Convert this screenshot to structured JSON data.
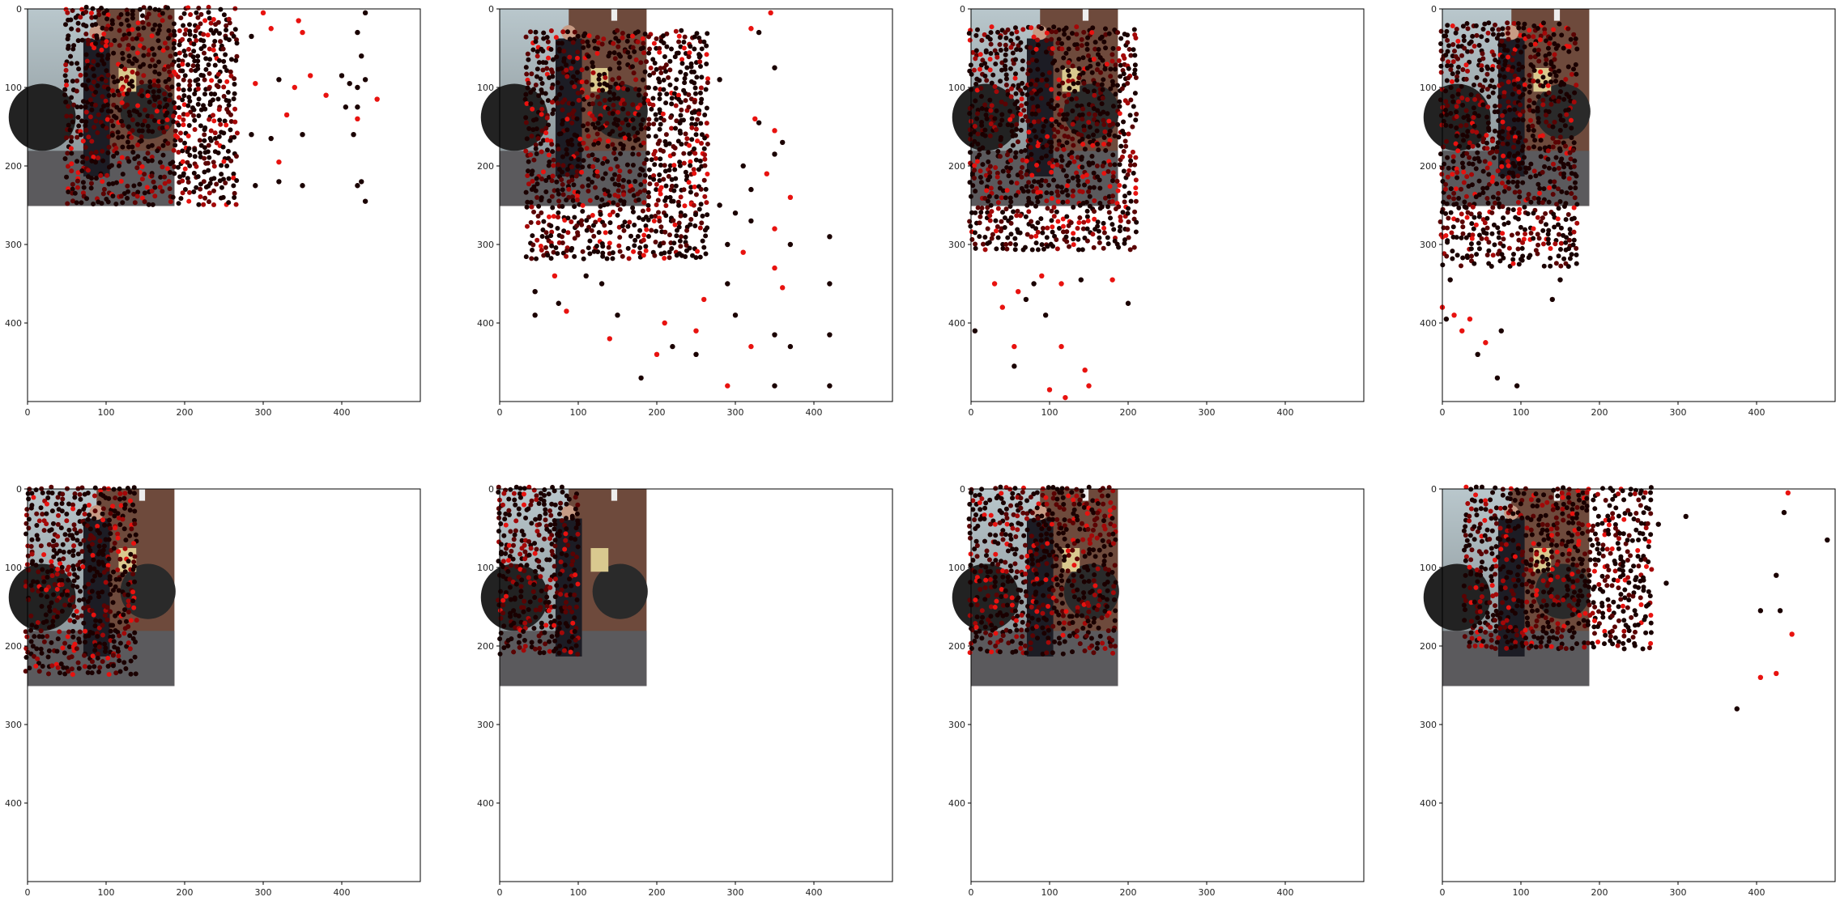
{
  "figure": {
    "layout": "2 rows x 4 columns of scatter plots over a photo background",
    "background_photo": "street scene: person in dark suit and hat standing in front of a silver pickup truck by a brick wall",
    "colors": {
      "dark_point": "#1a0000",
      "bright_point": "#e8120f",
      "axes": "#000000",
      "background": "#ffffff"
    }
  },
  "chart_data": [
    {
      "type": "scatter",
      "panel": 1,
      "xlim": [
        0,
        500
      ],
      "ylim": [
        500,
        0
      ],
      "xticks": [
        0,
        100,
        200,
        300,
        400
      ],
      "yticks": [
        0,
        100,
        200,
        300,
        400
      ],
      "photo_extent": {
        "x": [
          0,
          187
        ],
        "y": [
          0,
          251
        ]
      },
      "cloud": {
        "x": [
          50,
          265
        ],
        "y": [
          0,
          248
        ]
      },
      "outliers": [
        [
          285,
          35
        ],
        [
          300,
          5
        ],
        [
          310,
          25
        ],
        [
          345,
          15
        ],
        [
          350,
          30
        ],
        [
          290,
          95
        ],
        [
          320,
          90
        ],
        [
          340,
          100
        ],
        [
          360,
          85
        ],
        [
          330,
          135
        ],
        [
          350,
          160
        ],
        [
          285,
          160
        ],
        [
          310,
          165
        ],
        [
          290,
          225
        ],
        [
          320,
          220
        ],
        [
          350,
          225
        ],
        [
          320,
          195
        ],
        [
          380,
          110
        ],
        [
          400,
          85
        ],
        [
          410,
          95
        ],
        [
          420,
          100
        ],
        [
          405,
          125
        ],
        [
          420,
          125
        ],
        [
          420,
          140
        ],
        [
          415,
          160
        ],
        [
          420,
          225
        ],
        [
          425,
          220
        ],
        [
          430,
          245
        ],
        [
          445,
          115
        ],
        [
          430,
          90
        ],
        [
          425,
          60
        ],
        [
          420,
          30
        ],
        [
          430,
          5
        ]
      ]
    },
    {
      "type": "scatter",
      "panel": 2,
      "xlim": [
        0,
        500
      ],
      "ylim": [
        500,
        0
      ],
      "xticks": [
        0,
        100,
        200,
        300,
        400
      ],
      "yticks": [
        0,
        100,
        200,
        300,
        400
      ],
      "photo_extent": {
        "x": [
          0,
          187
        ],
        "y": [
          0,
          251
        ]
      },
      "cloud": {
        "x": [
          35,
          265
        ],
        "y": [
          30,
          320
        ]
      },
      "outliers": [
        [
          345,
          5
        ],
        [
          320,
          25
        ],
        [
          330,
          30
        ],
        [
          350,
          75
        ],
        [
          255,
          60
        ],
        [
          280,
          90
        ],
        [
          325,
          140
        ],
        [
          330,
          145
        ],
        [
          350,
          155
        ],
        [
          360,
          170
        ],
        [
          310,
          200
        ],
        [
          320,
          230
        ],
        [
          340,
          210
        ],
        [
          350,
          185
        ],
        [
          280,
          250
        ],
        [
          300,
          260
        ],
        [
          320,
          270
        ],
        [
          290,
          300
        ],
        [
          310,
          310
        ],
        [
          350,
          280
        ],
        [
          370,
          300
        ],
        [
          370,
          240
        ],
        [
          420,
          290
        ],
        [
          420,
          350
        ],
        [
          420,
          415
        ],
        [
          420,
          480
        ],
        [
          350,
          330
        ],
        [
          360,
          355
        ],
        [
          350,
          415
        ],
        [
          370,
          430
        ],
        [
          350,
          480
        ],
        [
          290,
          480
        ],
        [
          300,
          390
        ],
        [
          320,
          430
        ],
        [
          290,
          350
        ],
        [
          260,
          370
        ],
        [
          250,
          410
        ],
        [
          250,
          440
        ],
        [
          220,
          430
        ],
        [
          210,
          400
        ],
        [
          200,
          440
        ],
        [
          180,
          470
        ],
        [
          150,
          390
        ],
        [
          140,
          420
        ],
        [
          130,
          350
        ],
        [
          110,
          340
        ],
        [
          70,
          340
        ],
        [
          75,
          375
        ],
        [
          85,
          385
        ],
        [
          45,
          360
        ],
        [
          45,
          390
        ]
      ]
    },
    {
      "type": "scatter",
      "panel": 3,
      "xlim": [
        0,
        500
      ],
      "ylim": [
        500,
        0
      ],
      "xticks": [
        0,
        100,
        200,
        300,
        400
      ],
      "yticks": [
        0,
        100,
        200,
        300,
        400
      ],
      "photo_extent": {
        "x": [
          0,
          187
        ],
        "y": [
          0,
          251
        ]
      },
      "cloud": {
        "x": [
          0,
          210
        ],
        "y": [
          25,
          310
        ]
      },
      "outliers": [
        [
          5,
          410
        ],
        [
          30,
          350
        ],
        [
          40,
          380
        ],
        [
          55,
          430
        ],
        [
          55,
          455
        ],
        [
          60,
          360
        ],
        [
          70,
          370
        ],
        [
          80,
          350
        ],
        [
          90,
          340
        ],
        [
          95,
          390
        ],
        [
          100,
          485
        ],
        [
          115,
          350
        ],
        [
          115,
          430
        ],
        [
          120,
          495
        ],
        [
          140,
          345
        ],
        [
          145,
          460
        ],
        [
          150,
          480
        ],
        [
          180,
          345
        ],
        [
          200,
          375
        ]
      ]
    },
    {
      "type": "scatter",
      "panel": 4,
      "xlim": [
        0,
        500
      ],
      "ylim": [
        500,
        0
      ],
      "xticks": [
        0,
        100,
        200,
        300,
        400
      ],
      "yticks": [
        0,
        100,
        200,
        300,
        400
      ],
      "photo_extent": {
        "x": [
          0,
          187
        ],
        "y": [
          0,
          251
        ]
      },
      "cloud": {
        "x": [
          0,
          170
        ],
        "y": [
          20,
          330
        ]
      },
      "outliers": [
        [
          0,
          380
        ],
        [
          5,
          395
        ],
        [
          10,
          345
        ],
        [
          15,
          390
        ],
        [
          25,
          410
        ],
        [
          35,
          395
        ],
        [
          45,
          440
        ],
        [
          55,
          425
        ],
        [
          70,
          470
        ],
        [
          75,
          410
        ],
        [
          95,
          480
        ],
        [
          140,
          370
        ],
        [
          150,
          345
        ]
      ]
    },
    {
      "type": "scatter",
      "panel": 5,
      "xlim": [
        0,
        500
      ],
      "ylim": [
        500,
        0
      ],
      "xticks": [
        0,
        100,
        200,
        300,
        400
      ],
      "yticks": [
        0,
        100,
        200,
        300,
        400
      ],
      "photo_extent": {
        "x": [
          0,
          187
        ],
        "y": [
          0,
          251
        ]
      },
      "cloud": {
        "x": [
          0,
          140
        ],
        "y": [
          0,
          240
        ]
      },
      "outliers": []
    },
    {
      "type": "scatter",
      "panel": 6,
      "xlim": [
        0,
        500
      ],
      "ylim": [
        500,
        0
      ],
      "xticks": [
        0,
        100,
        200,
        300,
        400
      ],
      "yticks": [
        0,
        100,
        200,
        300,
        400
      ],
      "photo_extent": {
        "x": [
          0,
          187
        ],
        "y": [
          0,
          251
        ]
      },
      "cloud": {
        "x": [
          0,
          100
        ],
        "y": [
          0,
          210
        ]
      },
      "outliers": []
    },
    {
      "type": "scatter",
      "panel": 7,
      "xlim": [
        0,
        500
      ],
      "ylim": [
        500,
        0
      ],
      "xticks": [
        0,
        100,
        200,
        300,
        400
      ],
      "yticks": [
        0,
        100,
        200,
        300,
        400
      ],
      "photo_extent": {
        "x": [
          0,
          187
        ],
        "y": [
          0,
          251
        ]
      },
      "cloud": {
        "x": [
          0,
          185
        ],
        "y": [
          0,
          210
        ]
      },
      "outliers": []
    },
    {
      "type": "scatter",
      "panel": 8,
      "xlim": [
        0,
        500
      ],
      "ylim": [
        500,
        0
      ],
      "xticks": [
        0,
        100,
        200,
        300,
        400
      ],
      "yticks": [
        0,
        100,
        200,
        300,
        400
      ],
      "photo_extent": {
        "x": [
          0,
          187
        ],
        "y": [
          0,
          251
        ]
      },
      "cloud": {
        "x": [
          30,
          270
        ],
        "y": [
          0,
          205
        ]
      },
      "outliers": [
        [
          275,
          45
        ],
        [
          285,
          120
        ],
        [
          310,
          35
        ],
        [
          375,
          280
        ],
        [
          405,
          155
        ],
        [
          405,
          240
        ],
        [
          425,
          110
        ],
        [
          425,
          235
        ],
        [
          430,
          155
        ],
        [
          435,
          30
        ],
        [
          440,
          5
        ],
        [
          445,
          185
        ],
        [
          490,
          65
        ]
      ]
    }
  ]
}
